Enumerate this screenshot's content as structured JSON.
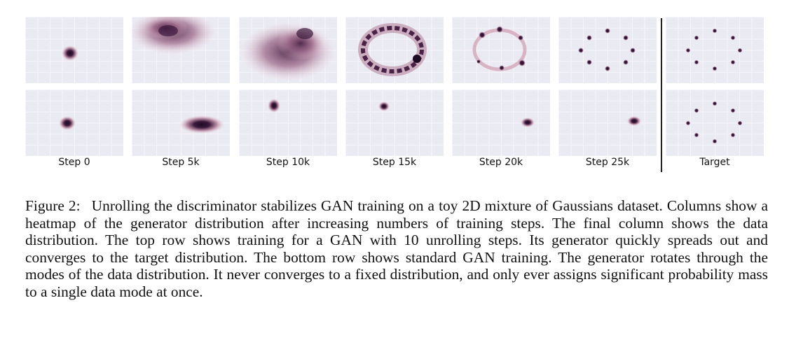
{
  "figure": {
    "column_labels": [
      "Step 0",
      "Step 5k",
      "Step 10k",
      "Step 15k",
      "Step 20k",
      "Step 25k",
      "Target"
    ],
    "rows": [
      "top",
      "bottom"
    ],
    "colors": {
      "panel_background": "#eaeaf2",
      "density_dark": "#2a0f2c",
      "density_light": "#e7c1cd"
    }
  },
  "caption": {
    "label": "Figure 2:",
    "text": "Unrolling the discriminator stabilizes GAN training on a toy 2D mixture of Gaussians dataset. Columns show a heatmap of the generator distribution after increasing numbers of training steps. The final column shows the data distribution. The top row shows training for a GAN with 10 unrolling steps. Its generator quickly spreads out and converges to the target distribution. The bottom row shows standard GAN training. The generator rotates through the modes of the data distribution. It never converges to a fixed distribution, and only ever assigns significant probability mass to a single data mode at once."
  }
}
